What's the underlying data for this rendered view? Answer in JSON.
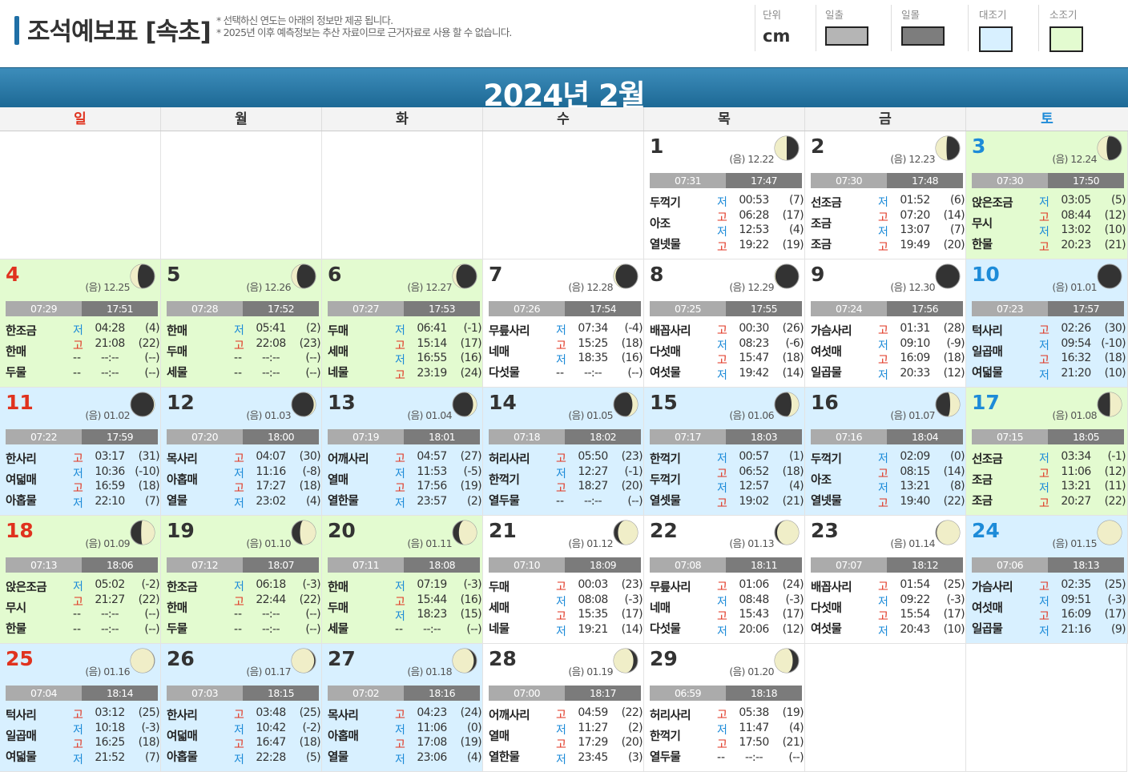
{
  "header": {
    "title": "조석예보표 [속초]",
    "notes": [
      "* 선택하신 연도는 아래의 정보만 제공 됩니다.",
      "* 2025년 이후 예측정보는 추산 자료이므로 근거자료로 사용 할 수 없습니다."
    ],
    "unit_label": "단위",
    "unit_value": "cm",
    "legend": [
      {
        "label": "일출",
        "color": "#b5b5b5"
      },
      {
        "label": "일몰",
        "color": "#7d7d7d"
      },
      {
        "label": "대조기",
        "color": "#d8f0ff"
      },
      {
        "label": "소조기",
        "color": "#e3fbd0"
      }
    ]
  },
  "month_title": "2024년 2월",
  "weekdays": [
    "일",
    "월",
    "화",
    "수",
    "목",
    "금",
    "토"
  ],
  "colors": {
    "sunday": "#e0321e",
    "saturday": "#1d8bd8",
    "high_tide": "#e0321e",
    "low_tide": "#1d8bd8"
  },
  "days": [
    {
      "day": "1",
      "col": 4,
      "row": 0,
      "lunar": "(음) 12.22",
      "moon": 0.5,
      "wax": false,
      "tg": "none",
      "sunrise": "07:31",
      "sunset": "17:47",
      "names": [
        "두꺽기",
        "아조",
        "열넷물"
      ],
      "tides": [
        [
          "저",
          "00:53",
          "(7)"
        ],
        [
          "고",
          "06:28",
          "(17)"
        ],
        [
          "저",
          "12:53",
          "(4)"
        ],
        [
          "고",
          "19:22",
          "(19)"
        ]
      ]
    },
    {
      "day": "2",
      "col": 5,
      "row": 0,
      "lunar": "(음) 12.23",
      "moon": 0.45,
      "wax": false,
      "tg": "none",
      "sunrise": "07:30",
      "sunset": "17:48",
      "names": [
        "선조금",
        "조금",
        "조금"
      ],
      "tides": [
        [
          "저",
          "01:52",
          "(6)"
        ],
        [
          "고",
          "07:20",
          "(14)"
        ],
        [
          "저",
          "13:07",
          "(7)"
        ],
        [
          "고",
          "19:49",
          "(20)"
        ]
      ]
    },
    {
      "day": "3",
      "col": 6,
      "row": 0,
      "lunar": "(음) 12.24",
      "moon": 0.38,
      "wax": false,
      "tg": "small",
      "sunrise": "07:30",
      "sunset": "17:50",
      "names": [
        "앉은조금",
        "무시",
        "한물"
      ],
      "tides": [
        [
          "저",
          "03:05",
          "(5)"
        ],
        [
          "고",
          "08:44",
          "(12)"
        ],
        [
          "저",
          "13:02",
          "(10)"
        ],
        [
          "고",
          "20:23",
          "(21)"
        ]
      ]
    },
    {
      "day": "4",
      "col": 0,
      "row": 1,
      "lunar": "(음) 12.25",
      "moon": 0.3,
      "wax": false,
      "tg": "small",
      "sunrise": "07:29",
      "sunset": "17:51",
      "names": [
        "한조금",
        "한매",
        "두물"
      ],
      "tides": [
        [
          "저",
          "04:28",
          "(4)"
        ],
        [
          "고",
          "21:08",
          "(22)"
        ],
        [
          "--",
          "--:--",
          "(--)"
        ],
        [
          "--",
          "--:--",
          "(--)"
        ]
      ]
    },
    {
      "day": "5",
      "col": 1,
      "row": 1,
      "lunar": "(음) 12.26",
      "moon": 0.22,
      "wax": false,
      "tg": "small",
      "sunrise": "07:28",
      "sunset": "17:52",
      "names": [
        "한매",
        "두매",
        "세물"
      ],
      "tides": [
        [
          "저",
          "05:41",
          "(2)"
        ],
        [
          "고",
          "22:08",
          "(23)"
        ],
        [
          "--",
          "--:--",
          "(--)"
        ],
        [
          "--",
          "--:--",
          "(--)"
        ]
      ]
    },
    {
      "day": "6",
      "col": 2,
      "row": 1,
      "lunar": "(음) 12.27",
      "moon": 0.15,
      "wax": false,
      "tg": "small",
      "sunrise": "07:27",
      "sunset": "17:53",
      "names": [
        "두매",
        "세매",
        "네물"
      ],
      "tides": [
        [
          "저",
          "06:41",
          "(-1)"
        ],
        [
          "고",
          "15:14",
          "(17)"
        ],
        [
          "저",
          "16:55",
          "(16)"
        ],
        [
          "고",
          "23:19",
          "(24)"
        ]
      ]
    },
    {
      "day": "7",
      "col": 3,
      "row": 1,
      "lunar": "(음) 12.28",
      "moon": 0.08,
      "wax": false,
      "tg": "none",
      "sunrise": "07:26",
      "sunset": "17:54",
      "names": [
        "무릎사리",
        "네매",
        "다섯물"
      ],
      "tides": [
        [
          "저",
          "07:34",
          "(-4)"
        ],
        [
          "고",
          "15:25",
          "(18)"
        ],
        [
          "저",
          "18:35",
          "(16)"
        ],
        [
          "--",
          "--:--",
          "(--)"
        ]
      ]
    },
    {
      "day": "8",
      "col": 4,
      "row": 1,
      "lunar": "(음) 12.29",
      "moon": 0.03,
      "wax": false,
      "tg": "none",
      "sunrise": "07:25",
      "sunset": "17:55",
      "names": [
        "배꼽사리",
        "다섯매",
        "여섯물"
      ],
      "tides": [
        [
          "고",
          "00:30",
          "(26)"
        ],
        [
          "저",
          "08:23",
          "(-6)"
        ],
        [
          "고",
          "15:47",
          "(18)"
        ],
        [
          "저",
          "19:42",
          "(14)"
        ]
      ]
    },
    {
      "day": "9",
      "col": 5,
      "row": 1,
      "lunar": "(음) 12.30",
      "moon": 0.0,
      "wax": false,
      "tg": "none",
      "sunrise": "07:24",
      "sunset": "17:56",
      "names": [
        "가슴사리",
        "여섯매",
        "일곱물"
      ],
      "tides": [
        [
          "고",
          "01:31",
          "(28)"
        ],
        [
          "저",
          "09:10",
          "(-9)"
        ],
        [
          "고",
          "16:09",
          "(18)"
        ],
        [
          "저",
          "20:33",
          "(12)"
        ]
      ]
    },
    {
      "day": "10",
      "col": 6,
      "row": 1,
      "lunar": "(음) 01.01",
      "moon": 0.0,
      "wax": true,
      "tg": "big",
      "sunrise": "07:23",
      "sunset": "17:57",
      "names": [
        "턱사리",
        "일곱매",
        "여덟물"
      ],
      "tides": [
        [
          "고",
          "02:26",
          "(30)"
        ],
        [
          "저",
          "09:54",
          "(-10)"
        ],
        [
          "고",
          "16:32",
          "(18)"
        ],
        [
          "저",
          "21:20",
          "(10)"
        ]
      ]
    },
    {
      "day": "11",
      "col": 0,
      "row": 2,
      "lunar": "(음) 01.02",
      "moon": 0.03,
      "wax": true,
      "tg": "big",
      "sunrise": "07:22",
      "sunset": "17:59",
      "names": [
        "한사리",
        "여덟매",
        "아홉물"
      ],
      "tides": [
        [
          "고",
          "03:17",
          "(31)"
        ],
        [
          "저",
          "10:36",
          "(-10)"
        ],
        [
          "고",
          "16:59",
          "(18)"
        ],
        [
          "저",
          "22:10",
          "(7)"
        ]
      ]
    },
    {
      "day": "12",
      "col": 1,
      "row": 2,
      "lunar": "(음) 01.03",
      "moon": 0.08,
      "wax": true,
      "tg": "big",
      "sunrise": "07:20",
      "sunset": "18:00",
      "names": [
        "목사리",
        "아홉매",
        "열물"
      ],
      "tides": [
        [
          "고",
          "04:07",
          "(30)"
        ],
        [
          "저",
          "11:16",
          "(-8)"
        ],
        [
          "고",
          "17:27",
          "(18)"
        ],
        [
          "저",
          "23:02",
          "(4)"
        ]
      ]
    },
    {
      "day": "13",
      "col": 2,
      "row": 2,
      "lunar": "(음) 01.04",
      "moon": 0.15,
      "wax": true,
      "tg": "big",
      "sunrise": "07:19",
      "sunset": "18:01",
      "names": [
        "어깨사리",
        "열매",
        "열한물"
      ],
      "tides": [
        [
          "고",
          "04:57",
          "(27)"
        ],
        [
          "저",
          "11:53",
          "(-5)"
        ],
        [
          "고",
          "17:56",
          "(19)"
        ],
        [
          "저",
          "23:57",
          "(2)"
        ]
      ]
    },
    {
      "day": "14",
      "col": 3,
      "row": 2,
      "lunar": "(음) 01.05",
      "moon": 0.22,
      "wax": true,
      "tg": "big",
      "sunrise": "07:18",
      "sunset": "18:02",
      "names": [
        "허리사리",
        "한꺽기",
        "열두물"
      ],
      "tides": [
        [
          "고",
          "05:50",
          "(23)"
        ],
        [
          "저",
          "12:27",
          "(-1)"
        ],
        [
          "고",
          "18:27",
          "(20)"
        ],
        [
          "--",
          "--:--",
          "(--)"
        ]
      ]
    },
    {
      "day": "15",
      "col": 4,
      "row": 2,
      "lunar": "(음) 01.06",
      "moon": 0.3,
      "wax": true,
      "tg": "big",
      "sunrise": "07:17",
      "sunset": "18:03",
      "names": [
        "한꺽기",
        "두꺽기",
        "열셋물"
      ],
      "tides": [
        [
          "저",
          "00:57",
          "(1)"
        ],
        [
          "고",
          "06:52",
          "(18)"
        ],
        [
          "저",
          "12:57",
          "(4)"
        ],
        [
          "고",
          "19:02",
          "(21)"
        ]
      ]
    },
    {
      "day": "16",
      "col": 5,
      "row": 2,
      "lunar": "(음) 01.07",
      "moon": 0.4,
      "wax": true,
      "tg": "big",
      "sunrise": "07:16",
      "sunset": "18:04",
      "names": [
        "두꺽기",
        "아조",
        "열넷물"
      ],
      "tides": [
        [
          "저",
          "02:09",
          "(0)"
        ],
        [
          "고",
          "08:15",
          "(14)"
        ],
        [
          "저",
          "13:21",
          "(8)"
        ],
        [
          "고",
          "19:40",
          "(22)"
        ]
      ]
    },
    {
      "day": "17",
      "col": 6,
      "row": 2,
      "lunar": "(음) 01.08",
      "moon": 0.48,
      "wax": true,
      "tg": "small",
      "sunrise": "07:15",
      "sunset": "18:05",
      "names": [
        "선조금",
        "조금",
        "조금"
      ],
      "tides": [
        [
          "저",
          "03:34",
          "(-1)"
        ],
        [
          "고",
          "11:06",
          "(12)"
        ],
        [
          "저",
          "13:21",
          "(11)"
        ],
        [
          "고",
          "20:27",
          "(22)"
        ]
      ]
    },
    {
      "day": "18",
      "col": 0,
      "row": 3,
      "lunar": "(음) 01.09",
      "moon": 0.56,
      "wax": true,
      "tg": "small",
      "sunrise": "07:13",
      "sunset": "18:06",
      "names": [
        "앉은조금",
        "무시",
        "한물"
      ],
      "tides": [
        [
          "저",
          "05:02",
          "(-2)"
        ],
        [
          "고",
          "21:27",
          "(22)"
        ],
        [
          "--",
          "--:--",
          "(--)"
        ],
        [
          "--",
          "--:--",
          "(--)"
        ]
      ]
    },
    {
      "day": "19",
      "col": 1,
      "row": 3,
      "lunar": "(음) 01.10",
      "moon": 0.65,
      "wax": true,
      "tg": "small",
      "sunrise": "07:12",
      "sunset": "18:07",
      "names": [
        "한조금",
        "한매",
        "두물"
      ],
      "tides": [
        [
          "저",
          "06:18",
          "(-3)"
        ],
        [
          "고",
          "22:44",
          "(22)"
        ],
        [
          "--",
          "--:--",
          "(--)"
        ],
        [
          "--",
          "--:--",
          "(--)"
        ]
      ]
    },
    {
      "day": "20",
      "col": 2,
      "row": 3,
      "lunar": "(음) 01.11",
      "moon": 0.74,
      "wax": true,
      "tg": "small",
      "sunrise": "07:11",
      "sunset": "18:08",
      "names": [
        "한매",
        "두매",
        "세물"
      ],
      "tides": [
        [
          "저",
          "07:19",
          "(-3)"
        ],
        [
          "고",
          "15:44",
          "(16)"
        ],
        [
          "저",
          "18:23",
          "(15)"
        ],
        [
          "--",
          "--:--",
          "(--)"
        ]
      ]
    },
    {
      "day": "21",
      "col": 3,
      "row": 3,
      "lunar": "(음) 01.12",
      "moon": 0.82,
      "wax": true,
      "tg": "none",
      "sunrise": "07:10",
      "sunset": "18:09",
      "names": [
        "두매",
        "세매",
        "네물"
      ],
      "tides": [
        [
          "고",
          "00:03",
          "(23)"
        ],
        [
          "저",
          "08:08",
          "(-3)"
        ],
        [
          "고",
          "15:35",
          "(17)"
        ],
        [
          "저",
          "19:21",
          "(14)"
        ]
      ]
    },
    {
      "day": "22",
      "col": 4,
      "row": 3,
      "lunar": "(음) 01.13",
      "moon": 0.9,
      "wax": true,
      "tg": "none",
      "sunrise": "07:08",
      "sunset": "18:11",
      "names": [
        "무릎사리",
        "네매",
        "다섯물"
      ],
      "tides": [
        [
          "고",
          "01:06",
          "(24)"
        ],
        [
          "저",
          "08:48",
          "(-3)"
        ],
        [
          "고",
          "15:43",
          "(17)"
        ],
        [
          "저",
          "20:06",
          "(12)"
        ]
      ]
    },
    {
      "day": "23",
      "col": 5,
      "row": 3,
      "lunar": "(음) 01.14",
      "moon": 0.96,
      "wax": true,
      "tg": "none",
      "sunrise": "07:07",
      "sunset": "18:12",
      "names": [
        "배꼽사리",
        "다섯매",
        "여섯물"
      ],
      "tides": [
        [
          "고",
          "01:54",
          "(25)"
        ],
        [
          "저",
          "09:22",
          "(-3)"
        ],
        [
          "고",
          "15:54",
          "(17)"
        ],
        [
          "저",
          "20:43",
          "(10)"
        ]
      ]
    },
    {
      "day": "24",
      "col": 6,
      "row": 3,
      "lunar": "(음) 01.15",
      "moon": 1.0,
      "wax": true,
      "tg": "big",
      "sunrise": "07:06",
      "sunset": "18:13",
      "names": [
        "가슴사리",
        "여섯매",
        "일곱물"
      ],
      "tides": [
        [
          "고",
          "02:35",
          "(25)"
        ],
        [
          "저",
          "09:51",
          "(-3)"
        ],
        [
          "고",
          "16:09",
          "(17)"
        ],
        [
          "저",
          "21:16",
          "(9)"
        ]
      ]
    },
    {
      "day": "25",
      "col": 0,
      "row": 4,
      "lunar": "(음) 01.16",
      "moon": 0.98,
      "wax": false,
      "tg": "big",
      "sunrise": "07:04",
      "sunset": "18:14",
      "names": [
        "턱사리",
        "일곱매",
        "여덟물"
      ],
      "tides": [
        [
          "고",
          "03:12",
          "(25)"
        ],
        [
          "저",
          "10:18",
          "(-3)"
        ],
        [
          "고",
          "16:25",
          "(18)"
        ],
        [
          "저",
          "21:52",
          "(7)"
        ]
      ]
    },
    {
      "day": "26",
      "col": 1,
      "row": 4,
      "lunar": "(음) 01.17",
      "moon": 0.94,
      "wax": false,
      "tg": "big",
      "sunrise": "07:03",
      "sunset": "18:15",
      "names": [
        "한사리",
        "여덟매",
        "아홉물"
      ],
      "tides": [
        [
          "고",
          "03:48",
          "(25)"
        ],
        [
          "저",
          "10:42",
          "(-2)"
        ],
        [
          "고",
          "16:47",
          "(18)"
        ],
        [
          "저",
          "22:28",
          "(5)"
        ]
      ]
    },
    {
      "day": "27",
      "col": 2,
      "row": 4,
      "lunar": "(음) 01.18",
      "moon": 0.88,
      "wax": false,
      "tg": "big",
      "sunrise": "07:02",
      "sunset": "18:16",
      "names": [
        "목사리",
        "아홉매",
        "열물"
      ],
      "tides": [
        [
          "고",
          "04:23",
          "(24)"
        ],
        [
          "저",
          "11:06",
          "(0)"
        ],
        [
          "고",
          "17:08",
          "(19)"
        ],
        [
          "저",
          "23:06",
          "(4)"
        ]
      ]
    },
    {
      "day": "28",
      "col": 3,
      "row": 4,
      "lunar": "(음) 01.19",
      "moon": 0.82,
      "wax": false,
      "tg": "none",
      "sunrise": "07:00",
      "sunset": "18:17",
      "names": [
        "어깨사리",
        "열매",
        "열한물"
      ],
      "tides": [
        [
          "고",
          "04:59",
          "(22)"
        ],
        [
          "저",
          "11:27",
          "(2)"
        ],
        [
          "고",
          "17:29",
          "(20)"
        ],
        [
          "저",
          "23:45",
          "(3)"
        ]
      ]
    },
    {
      "day": "29",
      "col": 4,
      "row": 4,
      "lunar": "(음) 01.20",
      "moon": 0.75,
      "wax": false,
      "tg": "none",
      "sunrise": "06:59",
      "sunset": "18:18",
      "names": [
        "허리사리",
        "한꺽기",
        "열두물"
      ],
      "tides": [
        [
          "고",
          "05:38",
          "(19)"
        ],
        [
          "저",
          "11:47",
          "(4)"
        ],
        [
          "고",
          "17:50",
          "(21)"
        ],
        [
          "--",
          "--:--",
          "(--)"
        ]
      ]
    }
  ]
}
